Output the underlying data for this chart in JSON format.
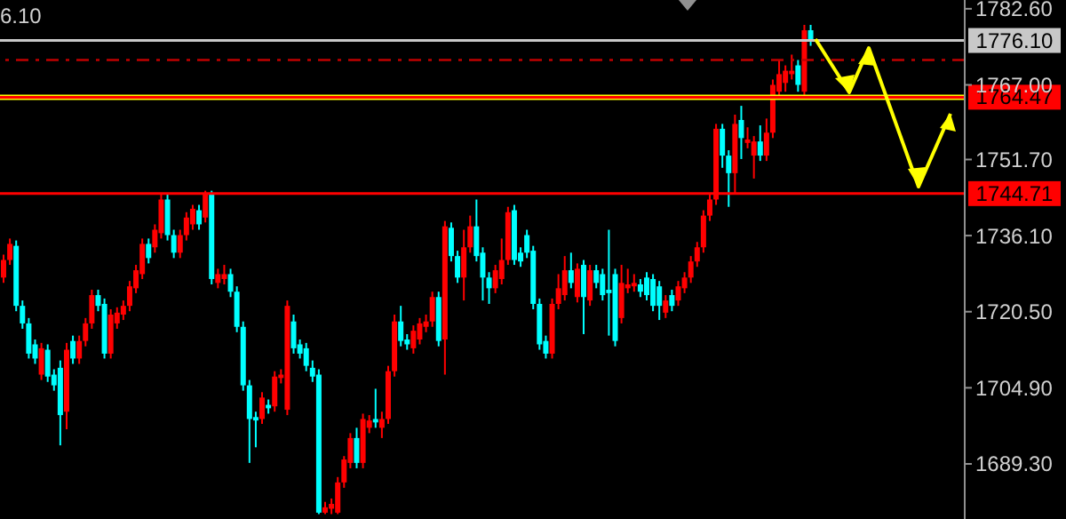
{
  "chart_data": {
    "type": "candlestick",
    "categories": [
      null,
      null,
      null,
      null,
      null,
      null,
      null,
      null,
      null,
      null,
      null,
      null,
      null,
      null,
      null,
      null,
      null,
      null,
      null,
      null,
      null,
      null,
      null,
      null,
      null,
      null,
      null,
      null,
      null,
      null,
      null,
      null,
      null,
      null,
      null,
      null,
      null,
      null,
      null,
      null,
      null,
      null,
      null,
      null,
      null,
      null,
      null,
      null,
      null,
      null,
      null,
      null,
      null,
      null,
      null,
      null,
      null,
      null,
      null,
      null,
      null,
      null,
      null,
      null,
      null,
      null,
      null,
      null,
      null,
      null,
      null,
      null,
      null,
      null,
      null,
      null,
      null,
      null,
      null,
      null,
      null,
      null,
      null,
      null,
      null,
      null,
      null,
      null,
      null,
      null,
      null,
      null,
      null,
      null,
      null,
      null,
      null,
      null,
      null,
      null,
      null,
      null,
      null,
      null,
      null,
      null,
      null,
      null,
      null,
      null,
      null,
      null,
      null,
      null,
      null,
      null,
      null,
      null,
      null,
      null,
      null,
      null,
      null,
      null,
      null,
      null,
      null,
      null,
      null,
      null,
      null,
      null,
      null,
      null,
      null,
      null,
      null,
      null,
      null,
      null,
      null,
      null,
      null,
      null,
      null,
      null,
      null,
      null,
      null,
      null,
      null,
      null,
      null
    ],
    "ohlc": [
      [
        1727.5,
        1732.2,
        1726.4,
        1731.1
      ],
      [
        1731.1,
        1735.5,
        1730.1,
        1734.4
      ],
      [
        1734.0,
        1735.1,
        1720.6,
        1721.7
      ],
      [
        1721.7,
        1722.8,
        1717.0,
        1718.1
      ],
      [
        1718.1,
        1719.2,
        1710.9,
        1711.9
      ],
      [
        1713.8,
        1714.8,
        1709.8,
        1710.9
      ],
      [
        1707.6,
        1714.1,
        1706.5,
        1713.0
      ],
      [
        1712.7,
        1713.8,
        1706.1,
        1707.2
      ],
      [
        1707.6,
        1708.7,
        1704.3,
        1705.4
      ],
      [
        1709.0,
        1710.5,
        1693.1,
        1699.3
      ],
      [
        1700.0,
        1714.1,
        1696.4,
        1712.7
      ],
      [
        1714.5,
        1715.6,
        1709.8,
        1710.9
      ],
      [
        1710.9,
        1715.6,
        1709.8,
        1714.5
      ],
      [
        1714.5,
        1719.2,
        1713.4,
        1718.1
      ],
      [
        1718.1,
        1725.0,
        1717.0,
        1723.9
      ],
      [
        1723.9,
        1725.0,
        1720.6,
        1721.7
      ],
      [
        1722.1,
        1723.2,
        1710.9,
        1711.9
      ],
      [
        1711.9,
        1721.0,
        1710.9,
        1719.9
      ],
      [
        1718.1,
        1721.4,
        1717.0,
        1720.3
      ],
      [
        1719.9,
        1722.8,
        1718.8,
        1721.7
      ],
      [
        1721.7,
        1726.8,
        1720.6,
        1725.7
      ],
      [
        1725.3,
        1730.1,
        1724.3,
        1729.0
      ],
      [
        1728.2,
        1735.5,
        1727.2,
        1734.4
      ],
      [
        1734.4,
        1735.5,
        1730.4,
        1731.5
      ],
      [
        1733.7,
        1738.4,
        1732.6,
        1737.3
      ],
      [
        1736.6,
        1744.5,
        1735.5,
        1743.5
      ],
      [
        1743.5,
        1744.5,
        1735.1,
        1736.2
      ],
      [
        1736.2,
        1737.3,
        1731.5,
        1732.6
      ],
      [
        1732.6,
        1737.3,
        1731.5,
        1736.2
      ],
      [
        1736.2,
        1740.9,
        1735.1,
        1739.8
      ],
      [
        1738.4,
        1742.4,
        1737.3,
        1741.6
      ],
      [
        1741.3,
        1742.4,
        1737.3,
        1738.4
      ],
      [
        1739.8,
        1745.3,
        1738.8,
        1744.5
      ],
      [
        1744.5,
        1745.3,
        1726.1,
        1727.2
      ],
      [
        1726.4,
        1729.3,
        1725.3,
        1728.2
      ],
      [
        1727.2,
        1730.1,
        1726.1,
        1728.2
      ],
      [
        1728.2,
        1729.3,
        1723.5,
        1724.6
      ],
      [
        1724.6,
        1725.7,
        1716.3,
        1717.4
      ],
      [
        1717.4,
        1718.5,
        1704.3,
        1705.4
      ],
      [
        1705.4,
        1706.5,
        1689.5,
        1698.5
      ],
      [
        1698.9,
        1700.0,
        1692.7,
        1698.2
      ],
      [
        1698.5,
        1704.0,
        1697.5,
        1702.9
      ],
      [
        1701.4,
        1702.5,
        1699.6,
        1700.7
      ],
      [
        1701.1,
        1708.3,
        1700.0,
        1707.2
      ],
      [
        1706.9,
        1708.7,
        1705.8,
        1707.6
      ],
      [
        1700.4,
        1722.8,
        1699.3,
        1721.7
      ],
      [
        1718.5,
        1719.9,
        1711.9,
        1713.0
      ],
      [
        1713.8,
        1714.8,
        1710.9,
        1711.9
      ],
      [
        1713.0,
        1714.1,
        1708.3,
        1709.4
      ],
      [
        1709.0,
        1710.5,
        1706.1,
        1707.2
      ],
      [
        1707.6,
        1708.7,
        1679.0,
        1679.3
      ],
      [
        1679.3,
        1681.5,
        1679.0,
        1680.4
      ],
      [
        1680.1,
        1682.2,
        1679.0,
        1681.1
      ],
      [
        1679.3,
        1686.6,
        1679.0,
        1685.5
      ],
      [
        1685.5,
        1690.9,
        1684.4,
        1690.2
      ],
      [
        1689.5,
        1695.6,
        1688.4,
        1694.6
      ],
      [
        1694.6,
        1696.7,
        1688.4,
        1689.5
      ],
      [
        1689.5,
        1699.6,
        1688.4,
        1698.5
      ],
      [
        1696.7,
        1699.3,
        1695.6,
        1698.2
      ],
      [
        1698.5,
        1704.7,
        1696.7,
        1697.8
      ],
      [
        1696.7,
        1700.0,
        1694.6,
        1698.5
      ],
      [
        1698.5,
        1709.4,
        1697.5,
        1708.3
      ],
      [
        1708.3,
        1719.9,
        1707.2,
        1718.5
      ],
      [
        1718.5,
        1721.7,
        1713.4,
        1714.5
      ],
      [
        1714.8,
        1715.9,
        1712.7,
        1713.8
      ],
      [
        1713.0,
        1717.7,
        1711.9,
        1716.6
      ],
      [
        1714.8,
        1719.2,
        1713.8,
        1718.1
      ],
      [
        1717.4,
        1719.9,
        1716.3,
        1718.5
      ],
      [
        1718.5,
        1724.6,
        1717.4,
        1723.5
      ],
      [
        1723.5,
        1724.6,
        1713.4,
        1714.5
      ],
      [
        1714.8,
        1739.1,
        1707.6,
        1738.0
      ],
      [
        1737.7,
        1738.8,
        1730.8,
        1731.9
      ],
      [
        1731.9,
        1733.0,
        1726.4,
        1727.5
      ],
      [
        1727.5,
        1737.3,
        1722.8,
        1733.7
      ],
      [
        1733.7,
        1740.2,
        1732.6,
        1738.0
      ],
      [
        1738.0,
        1743.5,
        1730.8,
        1731.9
      ],
      [
        1732.6,
        1733.7,
        1722.8,
        1727.5
      ],
      [
        1727.5,
        1728.6,
        1722.1,
        1725.3
      ],
      [
        1725.3,
        1730.1,
        1724.3,
        1729.0
      ],
      [
        1727.2,
        1735.5,
        1726.1,
        1731.1
      ],
      [
        1731.1,
        1742.0,
        1730.1,
        1740.9
      ],
      [
        1741.3,
        1742.4,
        1730.1,
        1731.1
      ],
      [
        1732.6,
        1733.7,
        1729.7,
        1730.8
      ],
      [
        1736.2,
        1737.3,
        1731.5,
        1732.6
      ],
      [
        1733.0,
        1734.0,
        1721.0,
        1722.1
      ],
      [
        1722.1,
        1723.2,
        1712.7,
        1713.8
      ],
      [
        1714.5,
        1715.6,
        1710.9,
        1711.9
      ],
      [
        1711.9,
        1723.2,
        1710.9,
        1722.1
      ],
      [
        1722.1,
        1728.2,
        1721.0,
        1725.3
      ],
      [
        1723.9,
        1731.9,
        1722.8,
        1729.0
      ],
      [
        1729.0,
        1732.6,
        1725.3,
        1726.4
      ],
      [
        1723.5,
        1730.4,
        1722.4,
        1729.3
      ],
      [
        1730.1,
        1731.1,
        1715.9,
        1723.5
      ],
      [
        1722.8,
        1730.1,
        1721.7,
        1729.0
      ],
      [
        1729.0,
        1730.1,
        1725.3,
        1726.4
      ],
      [
        1728.2,
        1729.3,
        1722.8,
        1723.9
      ],
      [
        1725.0,
        1737.3,
        1715.6,
        1724.3
      ],
      [
        1728.2,
        1729.3,
        1713.4,
        1714.5
      ],
      [
        1719.2,
        1730.1,
        1718.1,
        1726.4
      ],
      [
        1725.3,
        1729.3,
        1724.3,
        1726.1
      ],
      [
        1725.7,
        1728.2,
        1724.6,
        1726.4
      ],
      [
        1726.1,
        1727.2,
        1723.5,
        1724.6
      ],
      [
        1727.5,
        1728.6,
        1722.8,
        1723.9
      ],
      [
        1727.2,
        1728.2,
        1720.6,
        1721.7
      ],
      [
        1725.7,
        1726.8,
        1718.8,
        1721.7
      ],
      [
        1720.3,
        1723.9,
        1719.2,
        1722.8
      ],
      [
        1723.9,
        1725.0,
        1720.6,
        1721.7
      ],
      [
        1722.8,
        1726.8,
        1721.7,
        1725.7
      ],
      [
        1725.3,
        1728.6,
        1724.3,
        1727.5
      ],
      [
        1727.5,
        1731.9,
        1726.4,
        1730.8
      ],
      [
        1730.8,
        1734.8,
        1729.7,
        1733.7
      ],
      [
        1733.7,
        1741.3,
        1732.6,
        1740.2
      ],
      [
        1740.2,
        1744.5,
        1739.1,
        1743.5
      ],
      [
        1743.5,
        1759.0,
        1742.4,
        1758.0
      ],
      [
        1758.0,
        1759.0,
        1750.0,
        1752.5
      ],
      [
        1752.5,
        1753.6,
        1742.0,
        1748.9
      ],
      [
        1748.9,
        1760.9,
        1744.5,
        1759.0
      ],
      [
        1759.8,
        1762.7,
        1751.8,
        1756.1
      ],
      [
        1755.1,
        1758.3,
        1754.0,
        1755.8
      ],
      [
        1752.5,
        1756.5,
        1747.8,
        1755.4
      ],
      [
        1755.4,
        1758.7,
        1751.4,
        1752.5
      ],
      [
        1752.5,
        1760.1,
        1751.4,
        1757.2
      ],
      [
        1757.2,
        1768.1,
        1756.1,
        1767.0
      ],
      [
        1765.6,
        1772.1,
        1764.5,
        1769.2
      ],
      [
        1767.4,
        1771.0,
        1765.6,
        1769.9
      ],
      [
        1769.2,
        1773.2,
        1768.1,
        1769.9
      ],
      [
        1771.0,
        1772.1,
        1765.6,
        1767.0
      ],
      [
        1765.6,
        1779.3,
        1764.5,
        1778.2
      ],
      [
        1778.2,
        1779.3,
        1775.0,
        1776.1
      ],
      null,
      null,
      null,
      null,
      null,
      null,
      null,
      null,
      null,
      null,
      null,
      null,
      null,
      null,
      null,
      null,
      null,
      null,
      null,
      null,
      null,
      null,
      null,
      null
    ],
    "colors": [
      "#ff0000",
      "#ff0000",
      "#00ffff",
      "#00ffff",
      "#00ffff",
      "#00ffff",
      "#ff0000",
      "#00ffff",
      "#00ffff",
      "#00ffff",
      "#ff0000",
      "#00ffff",
      "#ff0000",
      "#ff0000",
      "#ff0000",
      "#00ffff",
      "#00ffff",
      "#ff0000",
      "#ff0000",
      "#ff0000",
      "#ff0000",
      "#ff0000",
      "#ff0000",
      "#00ffff",
      "#ff0000",
      "#ff0000",
      "#00ffff",
      "#00ffff",
      "#ff0000",
      "#ff0000",
      "#ff0000",
      "#00ffff",
      "#ff0000",
      "#00ffff",
      "#ff0000",
      "#ff0000",
      "#00ffff",
      "#00ffff",
      "#00ffff",
      "#00ffff",
      "#00ffff",
      "#ff0000",
      "#00ffff",
      "#ff0000",
      "#ff0000",
      "#ff0000",
      "#00ffff",
      "#00ffff",
      "#00ffff",
      "#00ffff",
      "#00ffff",
      "#ff0000",
      "#ff0000",
      "#ff0000",
      "#ff0000",
      "#ff0000",
      "#00ffff",
      "#ff0000",
      "#ff0000",
      "#00ffff",
      "#ff0000",
      "#ff0000",
      "#ff0000",
      "#00ffff",
      "#00ffff",
      "#ff0000",
      "#ff0000",
      "#ff0000",
      "#ff0000",
      "#00ffff",
      "#ff0000",
      "#00ffff",
      "#00ffff",
      "#ff0000",
      "#ff0000",
      "#00ffff",
      "#00ffff",
      "#00ffff",
      "#ff0000",
      "#ff0000",
      "#ff0000",
      "#00ffff",
      "#00ffff",
      "#00ffff",
      "#00ffff",
      "#00ffff",
      "#00ffff",
      "#ff0000",
      "#ff0000",
      "#ff0000",
      "#00ffff",
      "#ff0000",
      "#00ffff",
      "#ff0000",
      "#00ffff",
      "#00ffff",
      "#00ffff",
      "#00ffff",
      "#ff0000",
      "#ff0000",
      "#ff0000",
      "#00ffff",
      "#00ffff",
      "#00ffff",
      "#00ffff",
      "#ff0000",
      "#00ffff",
      "#ff0000",
      "#ff0000",
      "#ff0000",
      "#ff0000",
      "#ff0000",
      "#ff0000",
      "#ff0000",
      "#00ffff",
      "#00ffff",
      "#ff0000",
      "#00ffff",
      "#ff0000",
      "#ff0000",
      "#00ffff",
      "#ff0000",
      "#ff0000",
      "#ff0000",
      "#ff0000",
      "#ff0000",
      "#00ffff",
      "#ff0000",
      "#00ffff",
      null,
      null,
      null,
      null,
      null,
      null,
      null,
      null,
      null,
      null,
      null,
      null,
      null,
      null,
      null,
      null,
      null,
      null,
      null,
      null,
      null,
      null,
      null,
      null
    ],
    "ylim": [
      1678,
      1784.4
    ],
    "yticks": [
      {
        "value": 1689.3,
        "label": "1689.30"
      },
      {
        "value": 1704.9,
        "label": "1704.90"
      },
      {
        "value": 1720.5,
        "label": "1720.50"
      },
      {
        "value": 1736.1,
        "label": "1736.10"
      },
      {
        "value": 1751.7,
        "label": "1751.70"
      },
      {
        "value": 1767,
        "label": "1767.00"
      },
      {
        "value": 1782.6,
        "label": "1782.60"
      }
    ],
    "tick_labels": "y",
    "ref_lines": [
      {
        "axis": "y",
        "value": 1776.1,
        "label": "1776.10",
        "color": "#c8c8c8"
      },
      {
        "axis": "y",
        "value": 1772.1,
        "color": "#c00000",
        "line_style": "dashed"
      },
      {
        "axis": "y",
        "value": 1764.47,
        "color": "#ffff00"
      },
      {
        "axis": "y",
        "value": 1764.47,
        "label": "1764.47",
        "color": "#ff0000"
      },
      {
        "axis": "y",
        "value": 1744.71,
        "label": "1744.71",
        "color": "#ff0000"
      }
    ],
    "annotations": [
      "6.10"
    ]
  }
}
